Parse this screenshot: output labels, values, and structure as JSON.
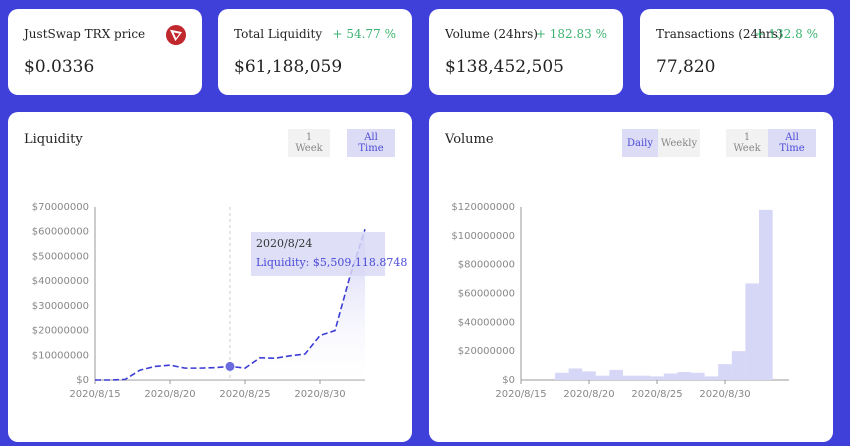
{
  "stats": {
    "price": {
      "title": "JustSwap TRX price",
      "value": "$0.0336",
      "icon": "tron-icon"
    },
    "liquidity": {
      "title": "Total Liquidity",
      "change": "+ 54.77 %",
      "value": "$61,188,059"
    },
    "volume": {
      "title": "Volume (24hrs)",
      "change": "+ 182.83 %",
      "value": "$138,452,505"
    },
    "transactions": {
      "title": "Transactions (24hrs)",
      "change": "+ 132.8 %",
      "value": "77,820"
    }
  },
  "liquidity_panel": {
    "title": "Liquidity",
    "buttons": {
      "week": "1 Week",
      "all": "All Time"
    },
    "selected": "All Time",
    "tooltip": {
      "date": "2020/8/24",
      "text": "Liquidity: $5,509,118.8748"
    }
  },
  "volume_panel": {
    "title": "Volume",
    "buttons": {
      "daily": "Daily",
      "weekly": "Weekly",
      "week": "1 Week",
      "all": "All Time"
    },
    "selected_interval": "Daily",
    "selected_range": "All Time"
  },
  "colors": {
    "accent": "#3f3fd9",
    "positive": "#3cb371",
    "line": "#3d3dd6",
    "bar": "#d6d6f7"
  },
  "chart_data": [
    {
      "type": "line",
      "name": "liquidity",
      "x_ticks": [
        "2020/8/15",
        "2020/8/20",
        "2020/8/25",
        "2020/8/30"
      ],
      "y_ticks": [
        "$0",
        "$10000000",
        "$20000000",
        "$30000000",
        "$40000000",
        "$50000000",
        "$60000000",
        "$70000000"
      ],
      "ylim": [
        0,
        70000000
      ],
      "x": [
        "2020/8/15",
        "2020/8/16",
        "2020/8/17",
        "2020/8/18",
        "2020/8/19",
        "2020/8/20",
        "2020/8/21",
        "2020/8/22",
        "2020/8/23",
        "2020/8/24",
        "2020/8/25",
        "2020/8/26",
        "2020/8/27",
        "2020/8/28",
        "2020/8/29",
        "2020/8/30",
        "2020/8/31",
        "2020/9/1",
        "2020/9/2"
      ],
      "values": [
        0,
        0,
        200000,
        4000000,
        5500000,
        6000000,
        4800000,
        4800000,
        5000000,
        5509118.8748,
        4800000,
        9000000,
        8800000,
        9800000,
        10500000,
        18000000,
        20000000,
        42000000,
        61000000
      ],
      "highlight": "2020/8/24",
      "grid": false
    },
    {
      "type": "bar",
      "name": "volume",
      "x_ticks": [
        "2020/8/15",
        "2020/8/20",
        "2020/8/25",
        "2020/8/30"
      ],
      "y_ticks": [
        "$0",
        "$20000000",
        "$40000000",
        "$60000000",
        "$80000000",
        "$100000000",
        "$120000000"
      ],
      "ylim": [
        0,
        120000000
      ],
      "x": [
        "2020/8/18",
        "2020/8/19",
        "2020/8/20",
        "2020/8/21",
        "2020/8/22",
        "2020/8/23",
        "2020/8/24",
        "2020/8/25",
        "2020/8/26",
        "2020/8/27",
        "2020/8/28",
        "2020/8/29",
        "2020/8/30",
        "2020/8/31",
        "2020/9/1",
        "2020/9/2"
      ],
      "values": [
        5000000,
        8000000,
        6000000,
        3000000,
        7000000,
        3000000,
        3000000,
        2500000,
        4500000,
        5500000,
        5000000,
        2500000,
        11000000,
        20000000,
        67000000,
        118000000
      ],
      "grid": false
    }
  ]
}
